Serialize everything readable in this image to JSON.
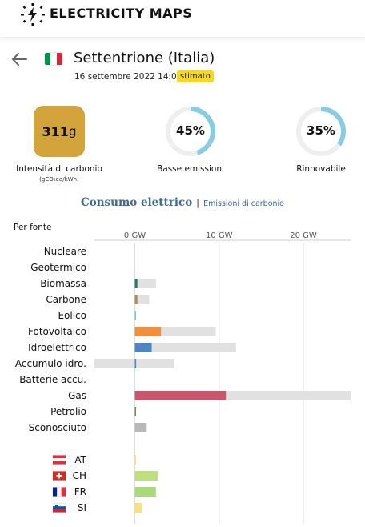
{
  "header": {
    "logo_icon": "lightning-bolt-icon",
    "brand": "ELECTRICITY MAPS"
  },
  "zone": {
    "back_icon": "arrow-left-icon",
    "flag_icon": "flag-it-icon",
    "title": "Settentrione (Italia)",
    "datetime": "16 settembre 2022 14:00",
    "badge": "stimato"
  },
  "metrics": {
    "carbon": {
      "value": "311",
      "unit": "g",
      "label": "Intensità di carbonio",
      "sublabel": "(gCO₂eq/kWh)",
      "color": "#d3a33c"
    },
    "low_emissions": {
      "value": "45%",
      "fraction": 0.45,
      "label": "Basse emissioni",
      "color": "#85cde5"
    },
    "renewable": {
      "value": "35%",
      "fraction": 0.35,
      "label": "Rinnovabile",
      "color": "#85cde5"
    }
  },
  "tabs": {
    "active": "Consumo elettrico",
    "separator": "|",
    "other": "Emissioni di carbonio"
  },
  "section_label": "Per fonte",
  "chart_data": {
    "type": "bar",
    "orientation": "horizontal",
    "x_unit": "GW",
    "xlim": [
      -4.8,
      25.6
    ],
    "ticks": [
      {
        "value": 0,
        "label": "0 GW"
      },
      {
        "value": 10,
        "label": "10 GW"
      },
      {
        "value": 20,
        "label": "20 GW"
      }
    ],
    "sources": [
      {
        "name": "Nucleare",
        "value": 0,
        "capacity": 0,
        "color": "#aaaaaa"
      },
      {
        "name": "Geotermico",
        "value": 0,
        "capacity": 0,
        "color": "#aaaaaa"
      },
      {
        "name": "Biomassa",
        "value": 0.3,
        "capacity": 2.5,
        "color": "#2b7d5b"
      },
      {
        "name": "Carbone",
        "value": 0.3,
        "capacity": 1.7,
        "color": "#a98f4f"
      },
      {
        "name": "Eolico",
        "value": 0.02,
        "capacity": 0.1,
        "color": "#74cdb9"
      },
      {
        "name": "Fotovoltaico",
        "value": 3.1,
        "capacity": 9.6,
        "color": "#f0903c"
      },
      {
        "name": "Idroelettrico",
        "value": 2.0,
        "capacity": 12.0,
        "color": "#4e86c5"
      },
      {
        "name": "Accumulo idro.",
        "value": 0.15,
        "capacity": 4.7,
        "capacity_min": -4.8,
        "color": "#4e86c5"
      },
      {
        "name": "Batterie accu.",
        "value": 0,
        "capacity": 0,
        "color": "#aaaaaa"
      },
      {
        "name": "Gas",
        "value": 10.8,
        "capacity": 25.6,
        "color": "#c8566e"
      },
      {
        "name": "Petrolio",
        "value": 0.05,
        "capacity": 0.1,
        "color": "#867d66"
      },
      {
        "name": "Sconosciuto",
        "value": 1.4,
        "capacity": 1.4,
        "color": "#b8b8b8"
      }
    ],
    "exchanges": [
      {
        "name": "AT",
        "flag_icon": "flag-at-icon",
        "value": 0.1,
        "color": "#f5e27a"
      },
      {
        "name": "CH",
        "flag_icon": "flag-ch-icon",
        "value": 2.7,
        "color": "#bde07a"
      },
      {
        "name": "FR",
        "flag_icon": "flag-fr-icon",
        "value": 2.5,
        "color": "#a8da78"
      },
      {
        "name": "SI",
        "flag_icon": "flag-si-icon",
        "value": 0.8,
        "color": "#f5e27a"
      }
    ]
  }
}
